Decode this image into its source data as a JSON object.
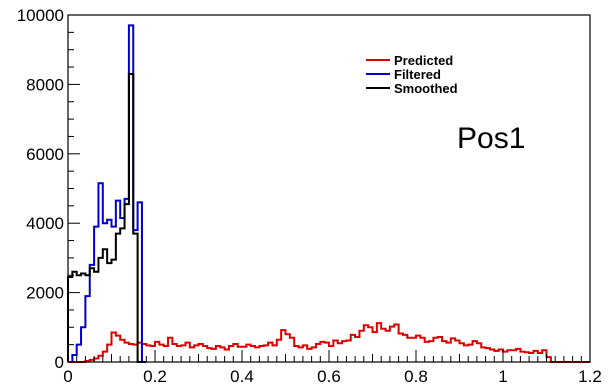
{
  "chart_data": {
    "type": "line",
    "title": "",
    "xlabel": "",
    "ylabel": "",
    "xlim": [
      0,
      1.2
    ],
    "ylim": [
      0,
      10000
    ],
    "grid": false,
    "legend_placement": "top-right",
    "x_ticks": [
      0,
      0.2,
      0.4,
      0.6,
      0.8,
      1,
      1.2
    ],
    "x_tick_labels": [
      "0",
      "0.2",
      "0.4",
      "0.6",
      "0.8",
      "1",
      "1.2"
    ],
    "y_ticks": [
      0,
      2000,
      4000,
      6000,
      8000,
      10000
    ],
    "y_tick_labels": [
      "0",
      "2000",
      "4000",
      "6000",
      "8000",
      "10000"
    ],
    "annotation": "Pos1",
    "bin_width": 0.01,
    "series": [
      {
        "name": "Predicted",
        "color": "#dd0000",
        "x_start": 0.0,
        "values": [
          0,
          0,
          0,
          0,
          30,
          60,
          100,
          180,
          300,
          500,
          850,
          760,
          640,
          560,
          520,
          500,
          560,
          520,
          480,
          460,
          580,
          500,
          460,
          700,
          520,
          460,
          480,
          560,
          420,
          480,
          520,
          460,
          400,
          380,
          460,
          420,
          360,
          460,
          520,
          440,
          440,
          500,
          460,
          420,
          460,
          480,
          560,
          480,
          640,
          920,
          800,
          700,
          460,
          420,
          480,
          380,
          420,
          520,
          580,
          560,
          460,
          620,
          540,
          600,
          620,
          780,
          720,
          900,
          1060,
          1000,
          860,
          1120,
          960,
          900,
          1020,
          1080,
          820,
          780,
          700,
          700,
          760,
          700,
          580,
          600,
          700,
          720,
          600,
          560,
          680,
          620,
          540,
          480,
          500,
          600,
          540,
          420,
          400,
          360,
          320,
          360,
          300,
          340,
          340,
          380,
          300,
          280,
          260,
          320,
          260,
          340,
          140,
          0,
          0,
          0,
          0,
          0,
          0,
          0,
          0,
          0
        ]
      },
      {
        "name": "Filtered",
        "color": "#0000cc",
        "x_start": 0.0,
        "values": [
          0,
          0,
          0,
          0,
          0,
          0,
          0,
          0,
          0,
          0,
          0,
          0,
          0,
          0,
          0,
          0,
          0,
          0,
          0,
          0,
          0,
          0,
          0,
          0,
          0,
          0,
          0,
          0,
          0,
          0,
          0,
          0,
          0,
          0,
          0,
          0,
          0,
          0,
          0,
          0,
          0,
          0,
          0,
          0,
          0,
          0,
          0,
          0,
          0,
          0,
          0,
          0,
          0,
          0,
          0,
          0,
          0,
          0,
          0,
          0,
          0,
          0,
          0,
          0,
          0,
          0,
          0,
          0,
          0,
          0,
          0,
          0,
          0,
          0,
          0,
          0,
          0,
          0,
          0,
          0,
          0,
          0,
          0,
          0,
          0,
          0,
          0,
          0,
          0,
          0,
          0,
          0,
          0,
          0,
          0,
          0,
          0,
          0,
          0,
          0,
          0,
          0,
          0,
          0,
          0,
          0,
          0,
          0,
          0,
          0,
          0,
          0,
          0,
          0,
          0,
          0,
          0,
          0,
          0,
          0
        ],
        "bins": [
          {
            "x": 0.01,
            "y": 200
          },
          {
            "x": 0.02,
            "y": 500
          },
          {
            "x": 0.03,
            "y": 1000
          },
          {
            "x": 0.04,
            "y": 1900
          },
          {
            "x": 0.05,
            "y": 2800
          },
          {
            "x": 0.06,
            "y": 3900
          },
          {
            "x": 0.07,
            "y": 5150
          },
          {
            "x": 0.08,
            "y": 4000
          },
          {
            "x": 0.09,
            "y": 4100
          },
          {
            "x": 0.1,
            "y": 3900
          },
          {
            "x": 0.11,
            "y": 4650
          },
          {
            "x": 0.12,
            "y": 4150
          },
          {
            "x": 0.13,
            "y": 4700
          },
          {
            "x": 0.14,
            "y": 9700
          },
          {
            "x": 0.15,
            "y": 3800
          },
          {
            "x": 0.16,
            "y": 4600
          },
          {
            "x": 0.17,
            "y": 0
          }
        ]
      },
      {
        "name": "Smoothed",
        "color": "#000000",
        "bins": [
          {
            "x": 0.0,
            "y": 2450
          },
          {
            "x": 0.01,
            "y": 2600
          },
          {
            "x": 0.02,
            "y": 2500
          },
          {
            "x": 0.03,
            "y": 2550
          },
          {
            "x": 0.04,
            "y": 2500
          },
          {
            "x": 0.05,
            "y": 2700
          },
          {
            "x": 0.06,
            "y": 2600
          },
          {
            "x": 0.07,
            "y": 3000
          },
          {
            "x": 0.08,
            "y": 3250
          },
          {
            "x": 0.09,
            "y": 2850
          },
          {
            "x": 0.1,
            "y": 2950
          },
          {
            "x": 0.11,
            "y": 3700
          },
          {
            "x": 0.12,
            "y": 3850
          },
          {
            "x": 0.13,
            "y": 4550
          },
          {
            "x": 0.14,
            "y": 8300
          },
          {
            "x": 0.15,
            "y": 3700
          },
          {
            "x": 0.16,
            "y": 0
          }
        ]
      }
    ]
  }
}
